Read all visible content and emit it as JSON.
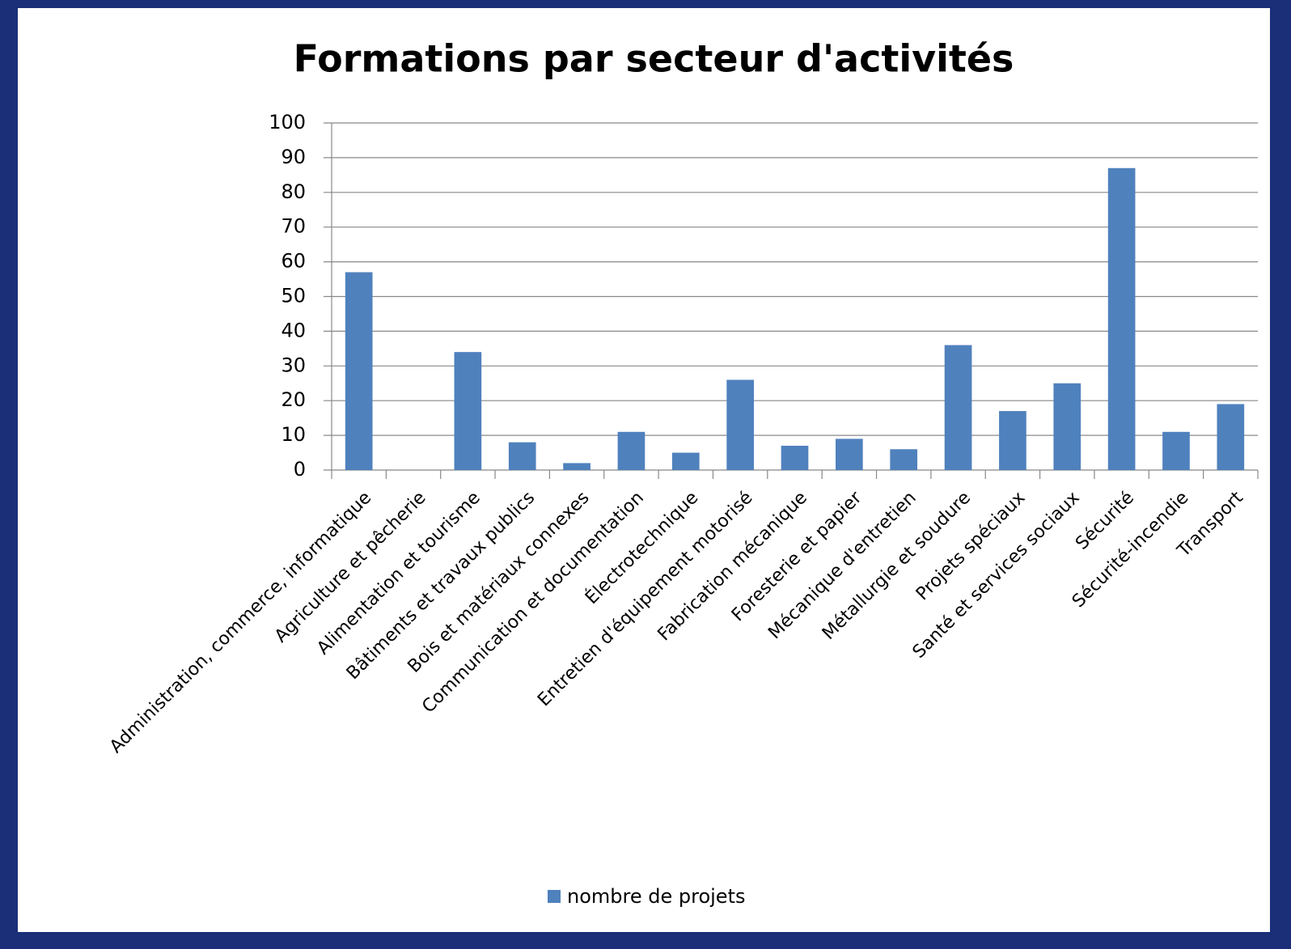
{
  "chart_data": {
    "type": "bar",
    "title": "Formations par secteur d'activités",
    "categories": [
      "Administration, commerce, informatique",
      "Agriculture et pêcherie",
      "Alimentation et tourisme",
      "Bâtiments et travaux publics",
      "Bois et matériaux connexes",
      "Communication et documentation",
      "Électrotechnique",
      "Entretien d'équipement motorisé",
      "Fabrication mécanique",
      "Foresterie et papier",
      "Mécanique d'entretien",
      "Métallurgie et soudure",
      "Projets spéciaux",
      "Santé et services sociaux",
      "Sécurité",
      "Sécurité-incendie",
      "Transport"
    ],
    "series": [
      {
        "name": "nombre de projets",
        "color": "#4f81bd",
        "values": [
          57,
          0,
          34,
          8,
          2,
          11,
          5,
          26,
          7,
          9,
          6,
          36,
          17,
          25,
          87,
          11,
          19
        ]
      }
    ],
    "ylim": [
      0,
      100
    ],
    "yticks": [
      0,
      10,
      20,
      30,
      40,
      50,
      60,
      70,
      80,
      90,
      100
    ],
    "grid": true,
    "legend": "bottom"
  }
}
